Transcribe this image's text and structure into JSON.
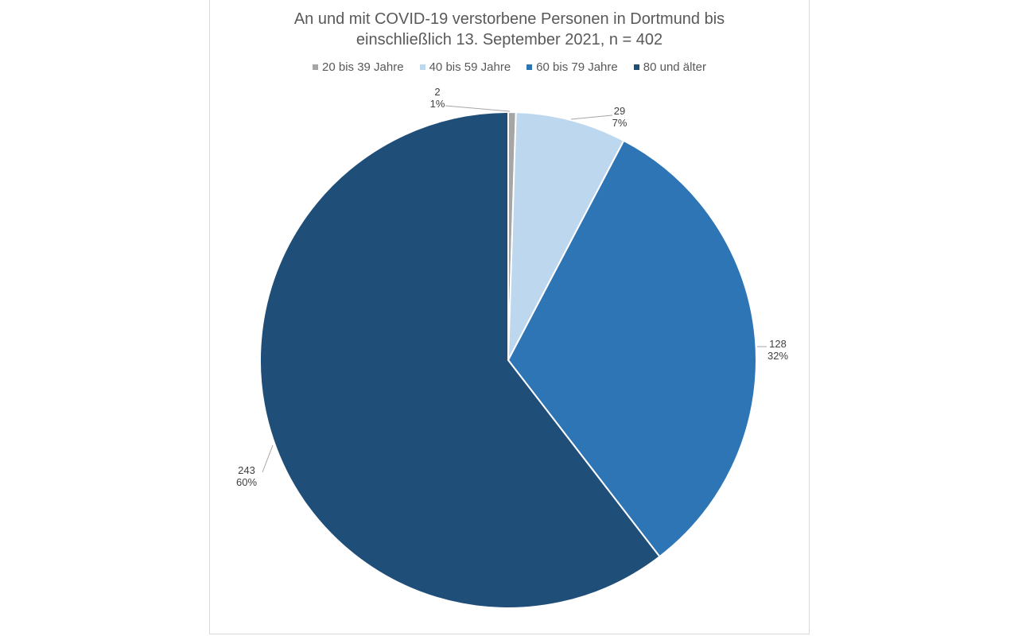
{
  "chart_data": {
    "type": "pie",
    "title_lines": [
      "An und mit COVID-19 verstorbene Personen in Dortmund bis",
      "einschließlich 13. September 2021, n = 402"
    ],
    "legend_position": "top",
    "slices": [
      {
        "name": "20 bis 39 Jahre",
        "value": 2,
        "percent_label": "1%",
        "color": "#a6a6a6"
      },
      {
        "name": "40 bis 59 Jahre",
        "value": 29,
        "percent_label": "7%",
        "color": "#bdd7ee"
      },
      {
        "name": "60 bis 79 Jahre",
        "value": 128,
        "percent_label": "32%",
        "color": "#2e75b6"
      },
      {
        "name": "80 und älter",
        "value": 243,
        "percent_label": "60%",
        "color": "#1f4e79"
      }
    ]
  }
}
